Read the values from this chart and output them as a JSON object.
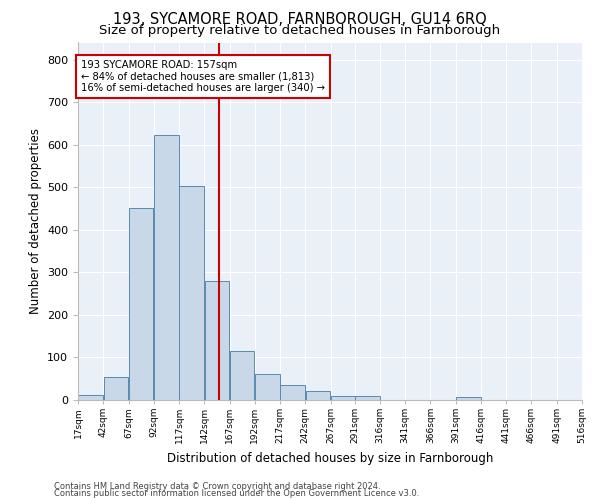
{
  "title": "193, SYCAMORE ROAD, FARNBOROUGH, GU14 6RQ",
  "subtitle": "Size of property relative to detached houses in Farnborough",
  "xlabel": "Distribution of detached houses by size in Farnborough",
  "ylabel": "Number of detached properties",
  "bin_edges": [
    17,
    42,
    67,
    92,
    117,
    142,
    167,
    192,
    217,
    242,
    267,
    291,
    316,
    341,
    366,
    391,
    416,
    441,
    466,
    491,
    516
  ],
  "bar_heights": [
    12,
    55,
    450,
    622,
    503,
    280,
    115,
    62,
    35,
    20,
    10,
    10,
    0,
    0,
    0,
    7,
    0,
    0,
    0,
    0
  ],
  "bar_color": "#c8d8e8",
  "bar_edge_color": "#5a8ab0",
  "property_size": 157,
  "red_line_color": "#cc0000",
  "annotation_line1": "193 SYCAMORE ROAD: 157sqm",
  "annotation_line2": "← 84% of detached houses are smaller (1,813)",
  "annotation_line3": "16% of semi-detached houses are larger (340) →",
  "annotation_box_color": "white",
  "annotation_box_edge": "#cc0000",
  "ylim": [
    0,
    840
  ],
  "yticks": [
    0,
    100,
    200,
    300,
    400,
    500,
    600,
    700,
    800
  ],
  "background_color": "#eaf0f8",
  "footer_line1": "Contains HM Land Registry data © Crown copyright and database right 2024.",
  "footer_line2": "Contains public sector information licensed under the Open Government Licence v3.0.",
  "title_fontsize": 10.5,
  "subtitle_fontsize": 9.5,
  "figsize": [
    6.0,
    5.0
  ],
  "dpi": 100
}
